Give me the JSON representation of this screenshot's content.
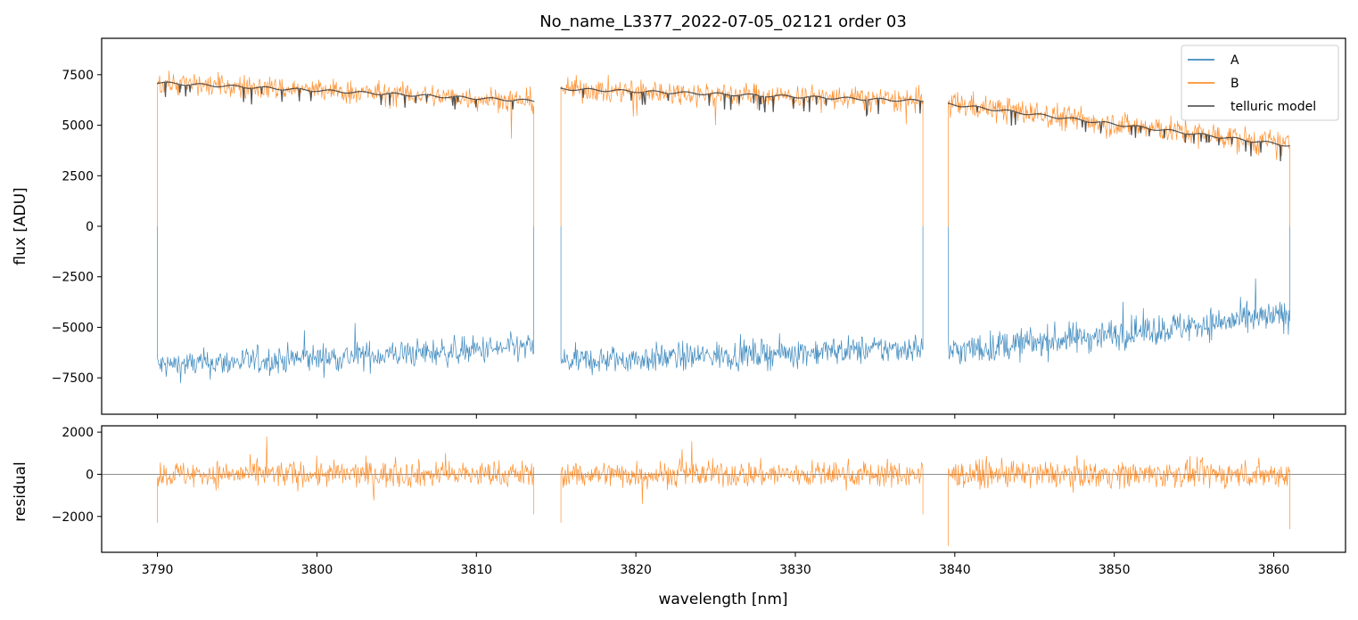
{
  "figure_title": "No_name_L3377_2022-07-05_02121  order 03",
  "colors": {
    "A": "#1f77b4",
    "B": "#ff7f0e",
    "telluric": "#404040",
    "zero_line": "#808080"
  },
  "chart_data": [
    {
      "type": "line",
      "panel": "top",
      "title": "No_name_L3377_2022-07-05_02121  order 03",
      "xlabel": "",
      "ylabel": "flux [ADU]",
      "xlim": [
        3786.5,
        3864.5
      ],
      "ylim": [
        -9300,
        9300
      ],
      "y_ticks": [
        {
          "value": 7500,
          "label": "7500"
        },
        {
          "value": 5000,
          "label": "5000"
        },
        {
          "value": 2500,
          "label": "2500"
        },
        {
          "value": 0,
          "label": "0"
        },
        {
          "value": -2500,
          "label": "−2500"
        },
        {
          "value": -5000,
          "label": "−5000"
        },
        {
          "value": -7500,
          "label": "−7500"
        }
      ],
      "legend": {
        "placement": "top-right",
        "entries": [
          {
            "key": "A",
            "label": "A"
          },
          {
            "key": "B",
            "label": "B"
          },
          {
            "key": "telluric",
            "label": "telluric model"
          }
        ]
      },
      "segments": [
        {
          "start": 3790.0,
          "end": 3813.6
        },
        {
          "start": 3815.3,
          "end": 3838.0
        },
        {
          "start": 3839.6,
          "end": 3861.0
        }
      ],
      "series": [
        {
          "key": "A",
          "name": "A",
          "levels": [
            [
              -6900,
              -6000
            ],
            [
              -6700,
              -6000
            ],
            [
              -6200,
              -4400
            ]
          ],
          "noise": 500
        },
        {
          "key": "B",
          "name": "B",
          "levels": [
            [
              7100,
              6200
            ],
            [
              6800,
              6200
            ],
            [
              6100,
              4000
            ]
          ],
          "noise": 420
        },
        {
          "key": "telluric",
          "name": "telluric model",
          "levels": [
            [
              7100,
              6200
            ],
            [
              6800,
              6200
            ],
            [
              6050,
              4000
            ]
          ],
          "noise": 0
        }
      ]
    },
    {
      "type": "line",
      "panel": "bottom",
      "xlabel": "wavelength [nm]",
      "ylabel": "residual",
      "xlim": [
        3786.5,
        3864.5
      ],
      "ylim": [
        -3700,
        2300
      ],
      "x_ticks": [
        {
          "value": 3790,
          "label": "3790"
        },
        {
          "value": 3800,
          "label": "3800"
        },
        {
          "value": 3810,
          "label": "3810"
        },
        {
          "value": 3820,
          "label": "3820"
        },
        {
          "value": 3830,
          "label": "3830"
        },
        {
          "value": 3840,
          "label": "3840"
        },
        {
          "value": 3850,
          "label": "3850"
        },
        {
          "value": 3860,
          "label": "3860"
        }
      ],
      "y_ticks": [
        {
          "value": 2000,
          "label": "2000"
        },
        {
          "value": 0,
          "label": "0"
        },
        {
          "value": -2000,
          "label": "−2000"
        }
      ],
      "series": [
        {
          "key": "B",
          "name": "residual",
          "noise": 450,
          "edge_spikes": [
            -2300,
            -1900,
            -2300,
            -1900,
            -3400,
            -2600
          ]
        }
      ]
    }
  ]
}
